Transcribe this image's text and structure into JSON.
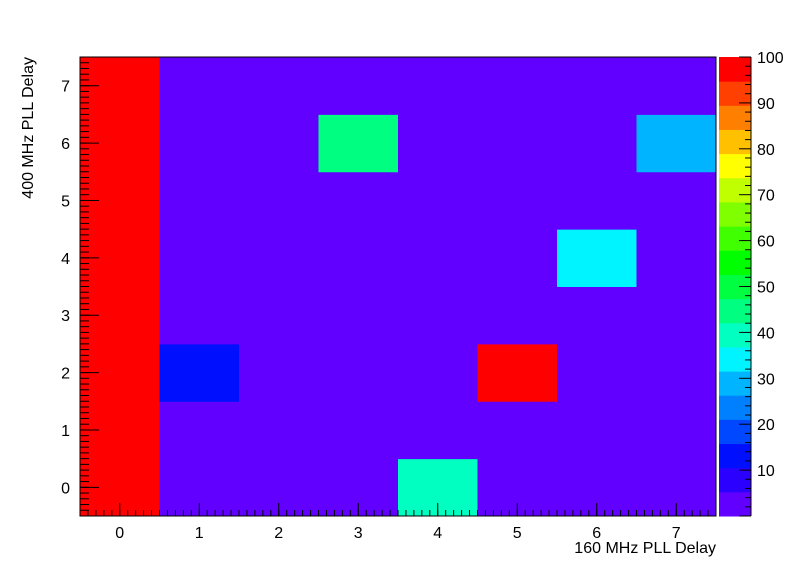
{
  "chart_data": {
    "type": "heatmap",
    "title": "",
    "xlabel": "160 MHz PLL Delay",
    "ylabel": "400 MHz PLL Delay",
    "x_categories": [
      "0",
      "1",
      "2",
      "3",
      "4",
      "5",
      "6",
      "7"
    ],
    "y_categories": [
      "0",
      "1",
      "2",
      "3",
      "4",
      "5",
      "6",
      "7"
    ],
    "xlim": [
      -0.5,
      7.5
    ],
    "ylim": [
      -0.5,
      7.5
    ],
    "z_range": [
      0,
      100
    ],
    "colorbar_ticks": [
      10,
      20,
      30,
      40,
      50,
      60,
      70,
      80,
      90,
      100
    ],
    "grid": false,
    "cells": [
      {
        "x": 0,
        "y": 0,
        "z": 100
      },
      {
        "x": 0,
        "y": 1,
        "z": 100
      },
      {
        "x": 0,
        "y": 2,
        "z": 100
      },
      {
        "x": 0,
        "y": 3,
        "z": 100
      },
      {
        "x": 0,
        "y": 4,
        "z": 100
      },
      {
        "x": 0,
        "y": 5,
        "z": 100
      },
      {
        "x": 0,
        "y": 6,
        "z": 100
      },
      {
        "x": 0,
        "y": 7,
        "z": 100
      },
      {
        "x": 1,
        "y": 0,
        "z": 0
      },
      {
        "x": 1,
        "y": 1,
        "z": 0
      },
      {
        "x": 1,
        "y": 2,
        "z": 12
      },
      {
        "x": 1,
        "y": 3,
        "z": 0
      },
      {
        "x": 1,
        "y": 4,
        "z": 0
      },
      {
        "x": 1,
        "y": 5,
        "z": 0
      },
      {
        "x": 1,
        "y": 6,
        "z": 0
      },
      {
        "x": 1,
        "y": 7,
        "z": 0
      },
      {
        "x": 2,
        "y": 0,
        "z": 0
      },
      {
        "x": 2,
        "y": 1,
        "z": 0
      },
      {
        "x": 2,
        "y": 2,
        "z": 0
      },
      {
        "x": 2,
        "y": 3,
        "z": 0
      },
      {
        "x": 2,
        "y": 4,
        "z": 0
      },
      {
        "x": 2,
        "y": 5,
        "z": 0
      },
      {
        "x": 2,
        "y": 6,
        "z": 0
      },
      {
        "x": 2,
        "y": 7,
        "z": 0
      },
      {
        "x": 3,
        "y": 0,
        "z": 0
      },
      {
        "x": 3,
        "y": 1,
        "z": 0
      },
      {
        "x": 3,
        "y": 2,
        "z": 0
      },
      {
        "x": 3,
        "y": 3,
        "z": 0
      },
      {
        "x": 3,
        "y": 4,
        "z": 0
      },
      {
        "x": 3,
        "y": 5,
        "z": 0
      },
      {
        "x": 3,
        "y": 6,
        "z": 43
      },
      {
        "x": 3,
        "y": 7,
        "z": 0
      },
      {
        "x": 4,
        "y": 0,
        "z": 38
      },
      {
        "x": 4,
        "y": 1,
        "z": 0
      },
      {
        "x": 4,
        "y": 2,
        "z": 0
      },
      {
        "x": 4,
        "y": 3,
        "z": 0
      },
      {
        "x": 4,
        "y": 4,
        "z": 0
      },
      {
        "x": 4,
        "y": 5,
        "z": 5
      },
      {
        "x": 4,
        "y": 6,
        "z": 0
      },
      {
        "x": 4,
        "y": 7,
        "z": 0
      },
      {
        "x": 5,
        "y": 0,
        "z": 0
      },
      {
        "x": 5,
        "y": 1,
        "z": 0
      },
      {
        "x": 5,
        "y": 2,
        "z": 100
      },
      {
        "x": 5,
        "y": 3,
        "z": 0
      },
      {
        "x": 5,
        "y": 4,
        "z": 0
      },
      {
        "x": 5,
        "y": 5,
        "z": 0
      },
      {
        "x": 5,
        "y": 6,
        "z": 0
      },
      {
        "x": 5,
        "y": 7,
        "z": 0
      },
      {
        "x": 6,
        "y": 0,
        "z": 0
      },
      {
        "x": 6,
        "y": 1,
        "z": 0
      },
      {
        "x": 6,
        "y": 2,
        "z": 0
      },
      {
        "x": 6,
        "y": 3,
        "z": 0
      },
      {
        "x": 6,
        "y": 4,
        "z": 32
      },
      {
        "x": 6,
        "y": 5,
        "z": 0
      },
      {
        "x": 6,
        "y": 6,
        "z": 0
      },
      {
        "x": 6,
        "y": 7,
        "z": 0
      },
      {
        "x": 7,
        "y": 0,
        "z": 0
      },
      {
        "x": 7,
        "y": 1,
        "z": 0
      },
      {
        "x": 7,
        "y": 2,
        "z": 0
      },
      {
        "x": 7,
        "y": 3,
        "z": 0
      },
      {
        "x": 7,
        "y": 4,
        "z": 0
      },
      {
        "x": 7,
        "y": 5,
        "z": 0
      },
      {
        "x": 7,
        "y": 6,
        "z": 27
      },
      {
        "x": 7,
        "y": 7,
        "z": 0
      }
    ],
    "palette": [
      "#6200ff",
      "#2c00ff",
      "#0010ff",
      "#0048ff",
      "#0080ff",
      "#00b4ff",
      "#00f4ff",
      "#00ffc0",
      "#00ff80",
      "#00ff40",
      "#00ff00",
      "#40ff00",
      "#80ff00",
      "#c0ff00",
      "#ffff00",
      "#ffc000",
      "#ff8000",
      "#ff4000",
      "#ff0000"
    ]
  }
}
